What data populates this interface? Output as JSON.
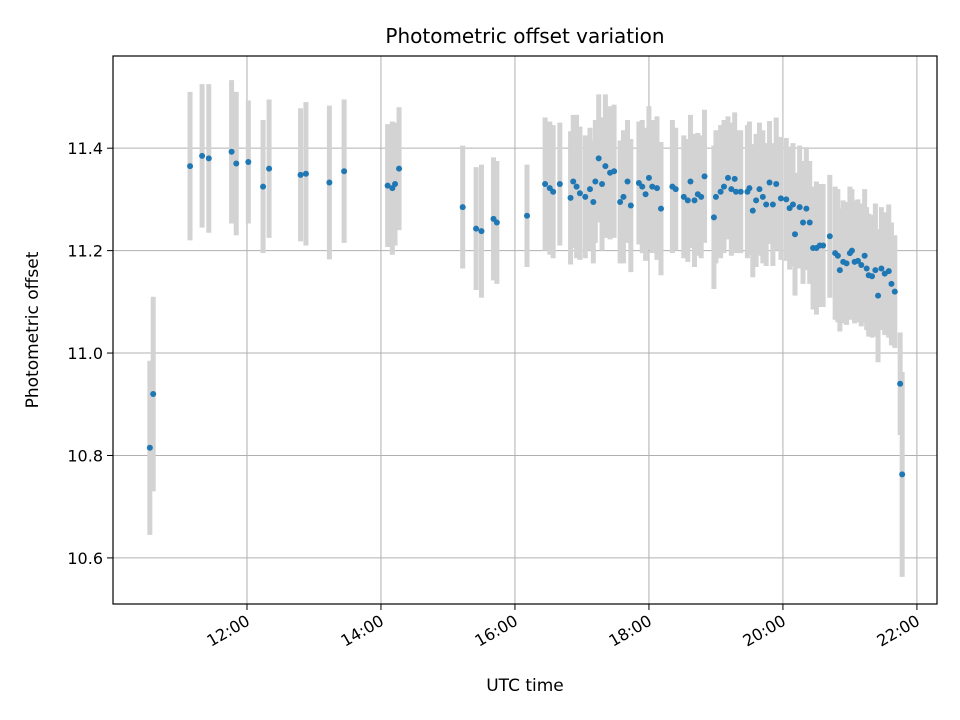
{
  "chart_data": {
    "type": "scatter",
    "title": "Photometric offset variation",
    "xlabel": "UTC time",
    "ylabel": "Photometric offset",
    "x_unit": "hours UTC",
    "xlim": [
      10.0,
      22.3
    ],
    "ylim": [
      10.51,
      11.58
    ],
    "x_ticks": [
      {
        "value": 12,
        "label": "12:00"
      },
      {
        "value": 14,
        "label": "14:00"
      },
      {
        "value": 16,
        "label": "16:00"
      },
      {
        "value": 18,
        "label": "18:00"
      },
      {
        "value": 20,
        "label": "20:00"
      },
      {
        "value": 22,
        "label": "22:00"
      }
    ],
    "y_ticks": [
      {
        "value": 10.6,
        "label": "10.6"
      },
      {
        "value": 10.8,
        "label": "10.8"
      },
      {
        "value": 11.0,
        "label": "11.0"
      },
      {
        "value": 11.2,
        "label": "11.2"
      },
      {
        "value": 11.4,
        "label": "11.4"
      }
    ],
    "grid": true,
    "colors": {
      "point": "#1f77b4",
      "errorbar": "#d3d3d3",
      "grid": "#b0b0b0"
    },
    "series": [
      {
        "values_format": "[x_hours, y, y_err]",
        "points": [
          [
            10.55,
            10.815,
            0.17
          ],
          [
            10.6,
            10.92,
            0.19
          ],
          [
            11.15,
            11.365,
            0.145
          ],
          [
            11.33,
            11.385,
            0.14
          ],
          [
            11.43,
            11.38,
            0.145
          ],
          [
            11.77,
            11.393,
            0.14
          ],
          [
            11.84,
            11.37,
            0.14
          ],
          [
            12.02,
            11.373,
            0.12
          ],
          [
            12.24,
            11.325,
            0.13
          ],
          [
            12.33,
            11.36,
            0.135
          ],
          [
            12.8,
            11.348,
            0.13
          ],
          [
            12.88,
            11.35,
            0.14
          ],
          [
            13.23,
            11.333,
            0.15
          ],
          [
            13.45,
            11.355,
            0.14
          ],
          [
            14.1,
            11.327,
            0.12
          ],
          [
            14.17,
            11.322,
            0.13
          ],
          [
            14.21,
            11.33,
            0.12
          ],
          [
            14.27,
            11.36,
            0.12
          ],
          [
            15.22,
            11.285,
            0.12
          ],
          [
            15.42,
            11.243,
            0.12
          ],
          [
            15.5,
            11.238,
            0.13
          ],
          [
            15.68,
            11.262,
            0.12
          ],
          [
            15.73,
            11.255,
            0.12
          ],
          [
            16.18,
            11.268,
            0.1
          ],
          [
            16.45,
            11.33,
            0.13
          ],
          [
            16.52,
            11.322,
            0.13
          ],
          [
            16.57,
            11.315,
            0.13
          ],
          [
            16.67,
            11.33,
            0.12
          ],
          [
            16.83,
            11.303,
            0.13
          ],
          [
            16.87,
            11.335,
            0.13
          ],
          [
            16.92,
            11.325,
            0.14
          ],
          [
            16.97,
            11.312,
            0.13
          ],
          [
            17.05,
            11.305,
            0.12
          ],
          [
            17.12,
            11.32,
            0.12
          ],
          [
            17.17,
            11.295,
            0.12
          ],
          [
            17.2,
            11.335,
            0.12
          ],
          [
            17.25,
            11.38,
            0.125
          ],
          [
            17.3,
            11.33,
            0.13
          ],
          [
            17.35,
            11.365,
            0.14
          ],
          [
            17.42,
            11.352,
            0.13
          ],
          [
            17.48,
            11.355,
            0.13
          ],
          [
            17.57,
            11.295,
            0.12
          ],
          [
            17.62,
            11.305,
            0.13
          ],
          [
            17.68,
            11.335,
            0.12
          ],
          [
            17.73,
            11.288,
            0.13
          ],
          [
            17.85,
            11.332,
            0.12
          ],
          [
            17.9,
            11.325,
            0.13
          ],
          [
            17.95,
            11.31,
            0.13
          ],
          [
            18.0,
            11.342,
            0.14
          ],
          [
            18.05,
            11.325,
            0.13
          ],
          [
            18.12,
            11.322,
            0.14
          ],
          [
            18.18,
            11.282,
            0.13
          ],
          [
            18.35,
            11.325,
            0.13
          ],
          [
            18.4,
            11.32,
            0.12
          ],
          [
            18.52,
            11.305,
            0.12
          ],
          [
            18.58,
            11.298,
            0.12
          ],
          [
            18.62,
            11.335,
            0.13
          ],
          [
            18.68,
            11.298,
            0.13
          ],
          [
            18.73,
            11.31,
            0.12
          ],
          [
            18.78,
            11.305,
            0.12
          ],
          [
            18.83,
            11.345,
            0.13
          ],
          [
            18.97,
            11.265,
            0.14
          ],
          [
            19.0,
            11.305,
            0.13
          ],
          [
            19.07,
            11.315,
            0.13
          ],
          [
            19.12,
            11.325,
            0.13
          ],
          [
            19.18,
            11.342,
            0.12
          ],
          [
            19.23,
            11.32,
            0.13
          ],
          [
            19.28,
            11.34,
            0.13
          ],
          [
            19.3,
            11.315,
            0.12
          ],
          [
            19.37,
            11.315,
            0.12
          ],
          [
            19.47,
            11.315,
            0.13
          ],
          [
            19.5,
            11.322,
            0.13
          ],
          [
            19.55,
            11.278,
            0.13
          ],
          [
            19.6,
            11.298,
            0.13
          ],
          [
            19.65,
            11.32,
            0.13
          ],
          [
            19.7,
            11.305,
            0.13
          ],
          [
            19.75,
            11.29,
            0.12
          ],
          [
            19.8,
            11.333,
            0.12
          ],
          [
            19.85,
            11.29,
            0.12
          ],
          [
            19.9,
            11.33,
            0.13
          ],
          [
            19.97,
            11.302,
            0.12
          ],
          [
            20.05,
            11.3,
            0.12
          ],
          [
            20.1,
            11.283,
            0.12
          ],
          [
            20.15,
            11.29,
            0.12
          ],
          [
            20.18,
            11.232,
            0.12
          ],
          [
            20.25,
            11.285,
            0.12
          ],
          [
            20.3,
            11.255,
            0.12
          ],
          [
            20.35,
            11.282,
            0.12
          ],
          [
            20.4,
            11.255,
            0.12
          ],
          [
            20.45,
            11.205,
            0.12
          ],
          [
            20.5,
            11.205,
            0.13
          ],
          [
            20.55,
            11.21,
            0.12
          ],
          [
            20.6,
            11.21,
            0.12
          ],
          [
            20.7,
            11.228,
            0.12
          ],
          [
            20.78,
            11.195,
            0.13
          ],
          [
            20.82,
            11.19,
            0.13
          ],
          [
            20.85,
            11.162,
            0.12
          ],
          [
            20.9,
            11.178,
            0.12
          ],
          [
            20.95,
            11.175,
            0.12
          ],
          [
            21.0,
            11.195,
            0.13
          ],
          [
            21.03,
            11.2,
            0.12
          ],
          [
            21.07,
            11.178,
            0.12
          ],
          [
            21.12,
            11.18,
            0.12
          ],
          [
            21.17,
            11.172,
            0.12
          ],
          [
            21.22,
            11.19,
            0.13
          ],
          [
            21.25,
            11.165,
            0.12
          ],
          [
            21.28,
            11.152,
            0.12
          ],
          [
            21.33,
            11.15,
            0.12
          ],
          [
            21.38,
            11.162,
            0.13
          ],
          [
            21.42,
            11.112,
            0.13
          ],
          [
            21.47,
            11.165,
            0.12
          ],
          [
            21.52,
            11.155,
            0.12
          ],
          [
            21.58,
            11.16,
            0.13
          ],
          [
            21.62,
            11.135,
            0.12
          ],
          [
            21.67,
            11.12,
            0.11
          ],
          [
            21.75,
            10.94,
            0.1
          ],
          [
            21.78,
            10.763,
            0.2
          ]
        ]
      }
    ]
  }
}
